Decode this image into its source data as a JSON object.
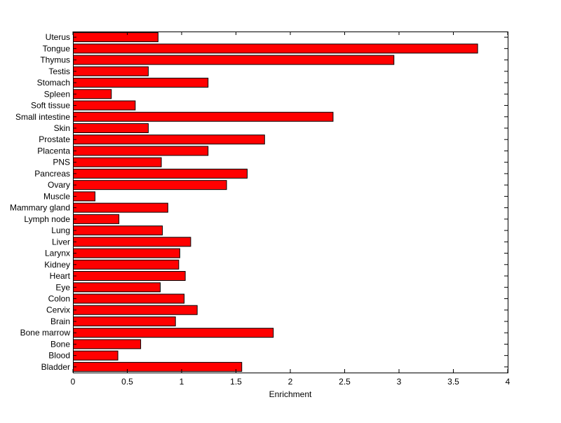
{
  "chart_data": {
    "type": "bar",
    "orientation": "horizontal",
    "xlabel": "Enrichment",
    "ylabel": "",
    "xlim": [
      0,
      4
    ],
    "xticks": [
      "0",
      "0.5",
      "1",
      "1.5",
      "2",
      "2.5",
      "3",
      "3.5",
      "4"
    ],
    "grid": false,
    "legend": "none",
    "bar_color": "#ff0000",
    "bar_edge_color": "#000000",
    "categories": [
      "Bladder",
      "Blood",
      "Bone",
      "Bone marrow",
      "Brain",
      "Cervix",
      "Colon",
      "Eye",
      "Heart",
      "Kidney",
      "Larynx",
      "Liver",
      "Lung",
      "Lymph node",
      "Mammary gland",
      "Muscle",
      "Ovary",
      "Pancreas",
      "PNS",
      "Placenta",
      "Prostate",
      "Skin",
      "Small intestine",
      "Soft tissue",
      "Spleen",
      "Stomach",
      "Testis",
      "Thymus",
      "Tongue",
      "Uterus"
    ],
    "values": [
      1.55,
      0.41,
      0.62,
      1.84,
      0.94,
      1.14,
      1.02,
      0.8,
      1.03,
      0.97,
      0.98,
      1.08,
      0.82,
      0.42,
      0.87,
      0.2,
      1.41,
      1.6,
      0.81,
      1.24,
      1.76,
      0.69,
      2.39,
      0.57,
      0.35,
      1.24,
      0.69,
      2.95,
      3.72,
      0.78
    ]
  }
}
